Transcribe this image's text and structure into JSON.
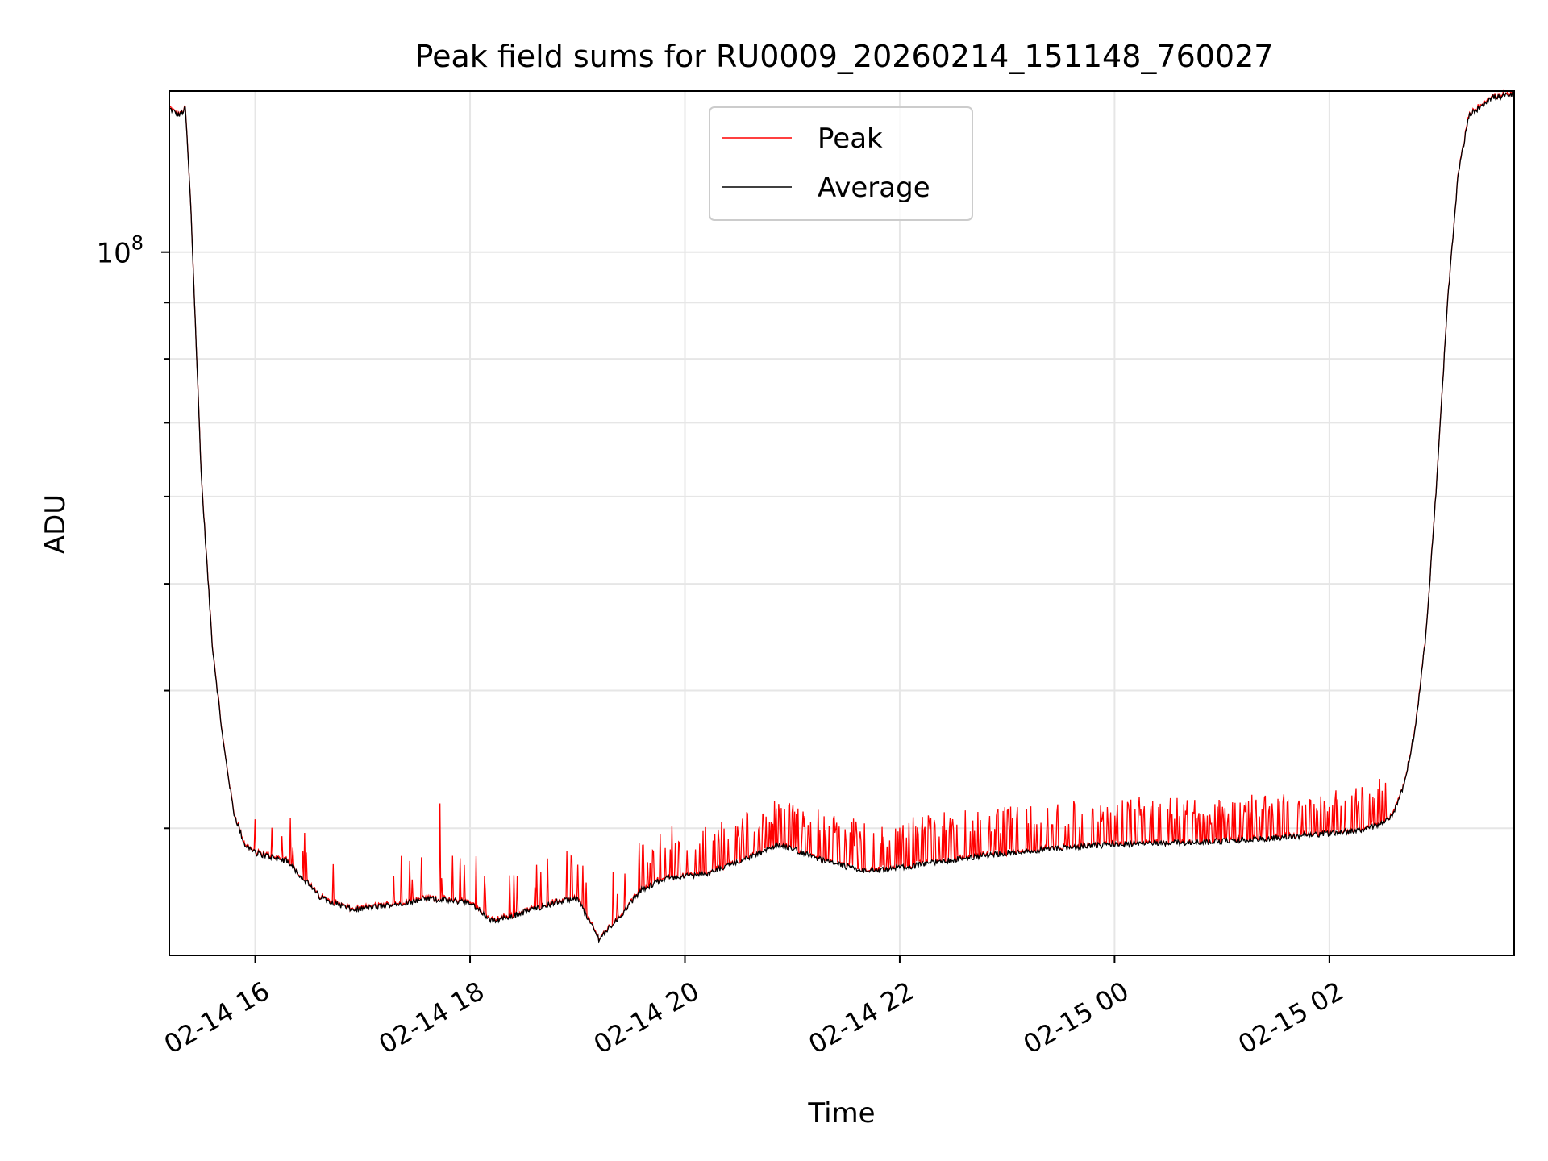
{
  "chart_data": {
    "type": "line",
    "title": "Peak field sums for RU0009_20260214_151148_760027",
    "xlabel": "Time",
    "ylabel": "ADU",
    "y_scale": "log",
    "xlim_hours": [
      15.2,
      27.72
    ],
    "ylim": [
      23000000,
      140000000
    ],
    "grid": true,
    "legend_position": "top-center",
    "x_ticks": [
      {
        "hour": 16,
        "label": "02-14 16"
      },
      {
        "hour": 18,
        "label": "02-14 18"
      },
      {
        "hour": 20,
        "label": "02-14 20"
      },
      {
        "hour": 22,
        "label": "02-14 22"
      },
      {
        "hour": 24,
        "label": "02-15 00"
      },
      {
        "hour": 26,
        "label": "02-15 02"
      }
    ],
    "y_major_ticks": [
      {
        "value": 100000000,
        "base": "10",
        "exponent": "8"
      }
    ],
    "y_minor_ticks": [
      30000000,
      40000000,
      50000000,
      60000000,
      70000000,
      80000000,
      90000000
    ],
    "series": [
      {
        "name": "Peak",
        "color": "#ff0000",
        "note": "follows Average baseline with frequent upward spikes of roughly 1.5e6-3e6 ADU",
        "spike_values": [
          {
            "hour": 17.72,
            "value": 31600000
          },
          {
            "hour": 19.0,
            "value": 27800000
          },
          {
            "hour": 20.9,
            "value": 31300000
          },
          {
            "hour": 22.9,
            "value": 30800000
          },
          {
            "hour": 24.0,
            "value": 30800000
          },
          {
            "hour": 25.2,
            "value": 30700000
          },
          {
            "hour": 26.4,
            "value": 30500000
          }
        ]
      },
      {
        "name": "Average",
        "color": "#000000",
        "x_hours": [
          15.2,
          15.3,
          15.35,
          15.4,
          15.5,
          15.6,
          15.7,
          15.8,
          15.9,
          16.0,
          16.3,
          16.6,
          16.9,
          17.2,
          17.6,
          18.0,
          18.2,
          18.4,
          18.8,
          19.0,
          19.2,
          19.4,
          19.6,
          19.8,
          20.2,
          20.5,
          20.9,
          21.3,
          21.7,
          22.1,
          22.5,
          23.0,
          23.5,
          24.0,
          24.5,
          25.0,
          25.5,
          26.0,
          26.3,
          26.5,
          26.6,
          26.7,
          26.8,
          26.9,
          27.0,
          27.1,
          27.2,
          27.3,
          27.5,
          27.72
        ],
        "values": [
          135000000,
          133000000,
          135000000,
          110000000,
          62000000,
          44000000,
          36000000,
          31000000,
          29000000,
          28500000,
          28000000,
          26000000,
          25300000,
          25500000,
          25900000,
          25700000,
          24700000,
          25000000,
          25700000,
          25900000,
          23800000,
          25000000,
          26400000,
          27000000,
          27300000,
          28000000,
          29000000,
          28000000,
          27400000,
          27700000,
          28100000,
          28500000,
          28800000,
          29000000,
          29100000,
          29200000,
          29400000,
          29700000,
          29900000,
          30300000,
          31000000,
          33000000,
          37000000,
          45000000,
          62000000,
          90000000,
          118000000,
          133000000,
          138000000,
          139000000
        ]
      }
    ]
  }
}
